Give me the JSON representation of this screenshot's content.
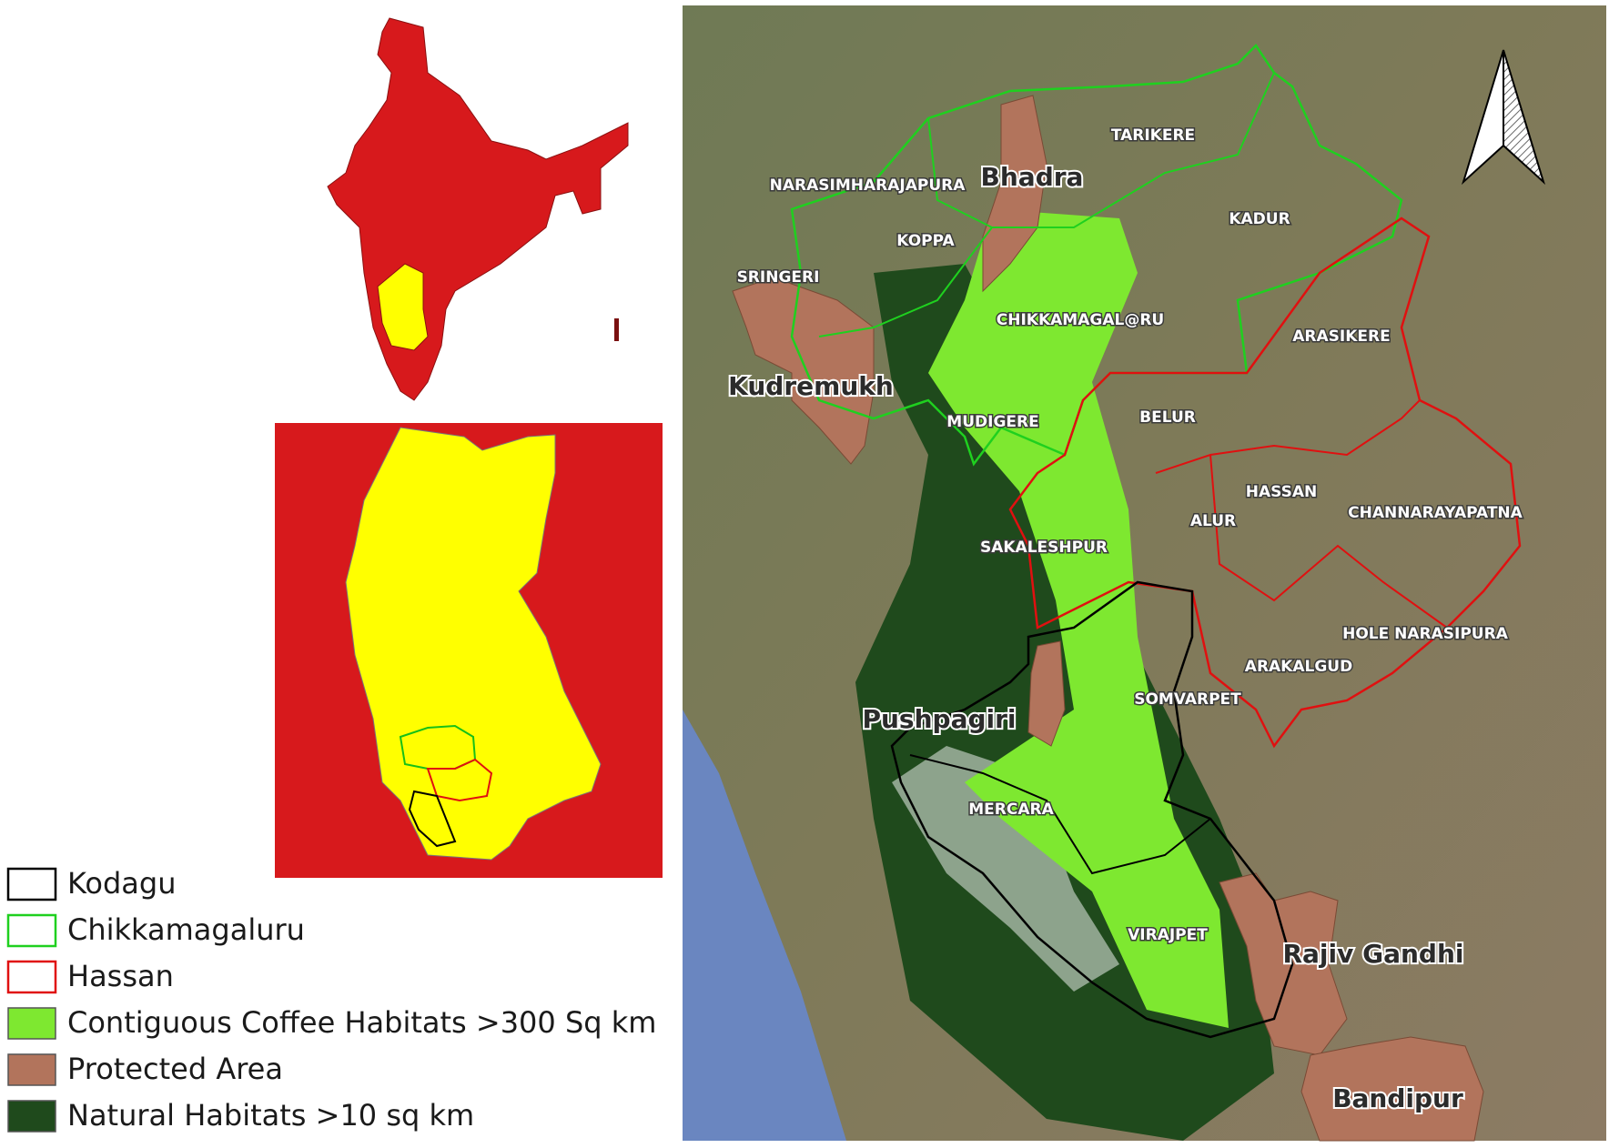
{
  "legend": {
    "items": [
      "Kodagu",
      "Chikkamagaluru",
      "Hassan",
      "Contiguous Coffee Habitats >300 Sq km",
      "Protected Area",
      "Natural Habitats >10 sq km"
    ]
  },
  "map": {
    "taluks": [
      "TARIKERE",
      "NARASIMHARAJAPURA",
      "KADUR",
      "KOPPA",
      "SRINGERI",
      "CHIKKAMAGAL@RU",
      "ARASIKERE",
      "MUDIGERE",
      "BELUR",
      "HASSAN",
      "ALUR",
      "CHANNARAYAPATNA",
      "SAKALESHPUR",
      "HOLE NARASIPURA",
      "ARAKALGUD",
      "SOMVARPET",
      "MERCARA",
      "VIRAJPET"
    ],
    "protected_areas": [
      "Bhadra",
      "Kudremukh",
      "Pushpagiri",
      "Rajiv Gandhi",
      "Bandipur"
    ]
  }
}
